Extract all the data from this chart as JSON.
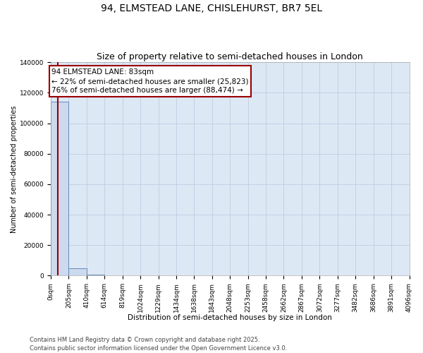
{
  "title": "94, ELMSTEAD LANE, CHISLEHURST, BR7 5EL",
  "subtitle": "Size of property relative to semi-detached houses in London",
  "xlabel": "Distribution of semi-detached houses by size in London",
  "ylabel": "Number of semi-detached properties",
  "property_size": 83,
  "annotation_text": "94 ELMSTEAD LANE: 83sqm\n← 22% of semi-detached houses are smaller (25,823)\n76% of semi-detached houses are larger (88,474) →",
  "bin_edges": [
    0,
    205,
    410,
    614,
    819,
    1024,
    1229,
    1434,
    1638,
    1843,
    2048,
    2253,
    2458,
    2662,
    2867,
    3072,
    3277,
    3482,
    3686,
    3891,
    4096
  ],
  "bin_labels": [
    "0sqm",
    "205sqm",
    "410sqm",
    "614sqm",
    "819sqm",
    "1024sqm",
    "1229sqm",
    "1434sqm",
    "1638sqm",
    "1843sqm",
    "2048sqm",
    "2253sqm",
    "2458sqm",
    "2662sqm",
    "2867sqm",
    "3072sqm",
    "3277sqm",
    "3482sqm",
    "3686sqm",
    "3891sqm",
    "4096sqm"
  ],
  "bar_heights": [
    114000,
    5000,
    500,
    120,
    50,
    25,
    15,
    10,
    7,
    5,
    3,
    2,
    2,
    1,
    1,
    1,
    0,
    0,
    0,
    0
  ],
  "bar_color": "#ccd9ee",
  "bar_edge_color": "#5580b0",
  "property_line_color": "#990000",
  "annotation_box_color": "#990000",
  "grid_color": "#b8c8de",
  "background_color": "#dde8f5",
  "ylim": [
    0,
    140000
  ],
  "yticks": [
    0,
    20000,
    40000,
    60000,
    80000,
    100000,
    120000,
    140000
  ],
  "footer": "Contains HM Land Registry data © Crown copyright and database right 2025.\nContains public sector information licensed under the Open Government Licence v3.0.",
  "title_fontsize": 10,
  "subtitle_fontsize": 9,
  "axis_label_fontsize": 7.5,
  "tick_fontsize": 6.5,
  "annotation_fontsize": 7.5,
  "ylabel_fontsize": 7
}
